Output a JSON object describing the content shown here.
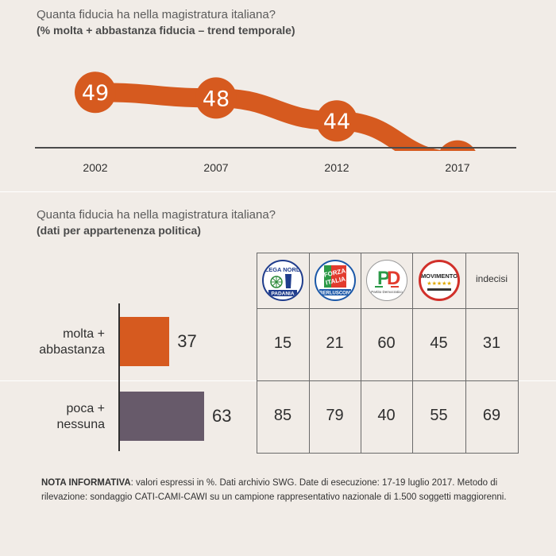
{
  "trend": {
    "title": "Quanta fiducia ha nella magistratura italiana?",
    "subtitle": "(% molta + abbastanza fiducia – trend temporale)",
    "colors": {
      "line": "#d65a1f",
      "circle": "#d65a1f",
      "axis": "#4b4b4b"
    }
  },
  "breakdown": {
    "title": "Quanta fiducia ha nella magistratura italiana?",
    "subtitle": "(dati per appartenenza politica)",
    "rows": [
      {
        "label_line1": "molta +",
        "label_line2": "abbastanza",
        "total": "37",
        "color": "#d65a1f"
      },
      {
        "label_line1": "poca +",
        "label_line2": "nessuna",
        "total": "63",
        "color": "#675a6a"
      }
    ],
    "columns": [
      {
        "logo": "lega-nord-logo",
        "logo_text_top": "LEGA NORD",
        "logo_text_bottom": "PADANIA",
        "values": [
          "15",
          "85"
        ]
      },
      {
        "logo": "forza-italia-logo",
        "logo_text_top": "FORZA ITALIA",
        "logo_text_bottom": "BERLUSCONI",
        "values": [
          "21",
          "79"
        ]
      },
      {
        "logo": "partito-democratico-logo",
        "logo_text_top": "PD",
        "logo_text_bottom": "Partito Democratico",
        "values": [
          "60",
          "40"
        ]
      },
      {
        "logo": "movimento-5-stelle-logo",
        "logo_text_top": "MOVIMENTO",
        "logo_text_bottom": "★★★★★",
        "values": [
          "45",
          "55"
        ]
      },
      {
        "logo": "",
        "header_text": "indecisi",
        "values": [
          "31",
          "69"
        ]
      }
    ]
  },
  "note": {
    "bold": "NOTA INFORMATIVA",
    "text": ": valori espressi in %. Dati archivio SWG. Date di esecuzione: 17-19 luglio 2017. Metodo di rilevazione: sondaggio CATI-CAMI-CAWI su un campione rappresentativo nazionale di 1.500 soggetti maggiorenni."
  },
  "chart_data": [
    {
      "type": "line",
      "title": "Quanta fiducia ha nella magistratura italiana?",
      "subtitle": "(% molta + abbastanza fiducia – trend temporale)",
      "x": [
        "2002",
        "2007",
        "2012",
        "2017"
      ],
      "series": [
        {
          "values": [
            49,
            48,
            44,
            37
          ]
        }
      ],
      "ylim": [
        30,
        55
      ],
      "grid": false
    },
    {
      "type": "bar",
      "title": "Quanta fiducia ha nella magistratura italiana?",
      "subtitle": "(dati per appartenenza politica)",
      "categories": [
        "molta + abbastanza",
        "poca + nessuna"
      ],
      "values": [
        37,
        63
      ],
      "xlim": [
        0,
        100
      ]
    },
    {
      "type": "table",
      "columns": [
        "Lega Nord",
        "Forza Italia",
        "Partito Democratico",
        "Movimento 5 Stelle",
        "indecisi"
      ],
      "rows": [
        "molta + abbastanza",
        "poca + nessuna"
      ],
      "values": [
        [
          15,
          21,
          60,
          45,
          31
        ],
        [
          85,
          79,
          40,
          55,
          69
        ]
      ]
    }
  ]
}
